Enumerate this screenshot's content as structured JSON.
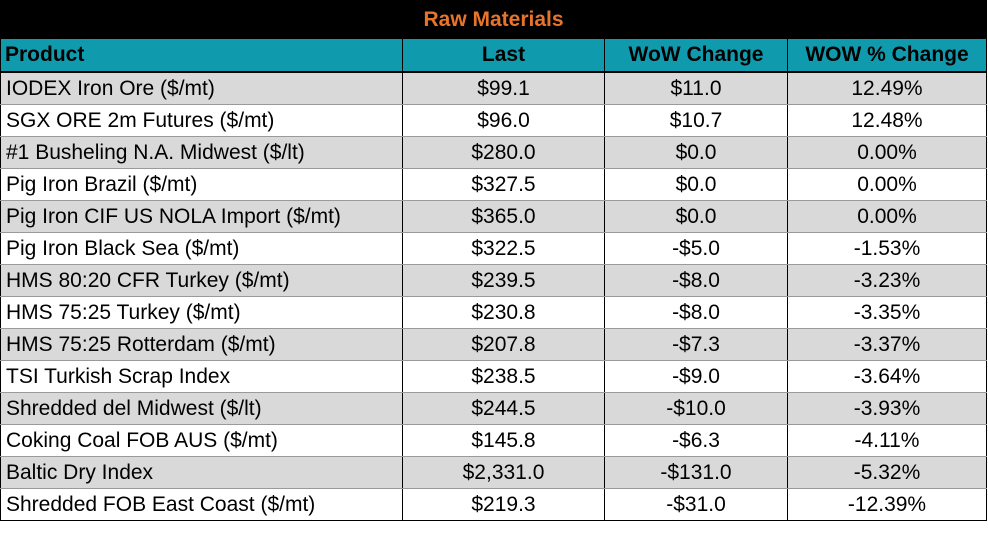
{
  "title": "Raw Materials",
  "columns": {
    "product": "Product",
    "last": "Last",
    "wow_change": "WoW Change",
    "wow_pct_change": "WOW % Change"
  },
  "rows": [
    {
      "product": "IODEX  Iron Ore ($/mt)",
      "last": "$99.1",
      "wow": "$11.0",
      "pct": "12.49%"
    },
    {
      "product": "SGX ORE 2m Futures ($/mt)",
      "last": "$96.0",
      "wow": "$10.7",
      "pct": "12.48%"
    },
    {
      "product": "#1 Busheling N.A. Midwest ($/lt)",
      "last": "$280.0",
      "wow": "$0.0",
      "pct": "0.00%"
    },
    {
      "product": "Pig Iron Brazil ($/mt)",
      "last": "$327.5",
      "wow": "$0.0",
      "pct": "0.00%"
    },
    {
      "product": "Pig Iron CIF US NOLA Import ($/mt)",
      "last": "$365.0",
      "wow": "$0.0",
      "pct": "0.00%"
    },
    {
      "product": "Pig Iron Black Sea ($/mt)",
      "last": "$322.5",
      "wow": "-$5.0",
      "pct": "-1.53%"
    },
    {
      "product": "HMS 80:20 CFR Turkey ($/mt)",
      "last": "$239.5",
      "wow": "-$8.0",
      "pct": "-3.23%"
    },
    {
      "product": "HMS 75:25 Turkey ($/mt)",
      "last": "$230.8",
      "wow": "-$8.0",
      "pct": "-3.35%"
    },
    {
      "product": "HMS 75:25 Rotterdam ($/mt)",
      "last": "$207.8",
      "wow": "-$7.3",
      "pct": "-3.37%"
    },
    {
      "product": "TSI Turkish Scrap Index",
      "last": "$238.5",
      "wow": "-$9.0",
      "pct": "-3.64%"
    },
    {
      "product": "Shredded del  Midwest ($/lt)",
      "last": "$244.5",
      "wow": "-$10.0",
      "pct": "-3.93%"
    },
    {
      "product": "Coking Coal FOB AUS ($/mt)",
      "last": "$145.8",
      "wow": "-$6.3",
      "pct": "-4.11%"
    },
    {
      "product": "Baltic Dry Index",
      "last": "$2,331.0",
      "wow": "-$131.0",
      "pct": "-5.32%"
    },
    {
      "product": "Shredded FOB East Coast ($/mt)",
      "last": "$219.3",
      "wow": "-$31.0",
      "pct": "-12.39%"
    }
  ],
  "colors": {
    "title_bg": "#000000",
    "title_text": "#e8742c",
    "header_bg": "#0f9bad",
    "row_alt": "#d9d9d9"
  }
}
